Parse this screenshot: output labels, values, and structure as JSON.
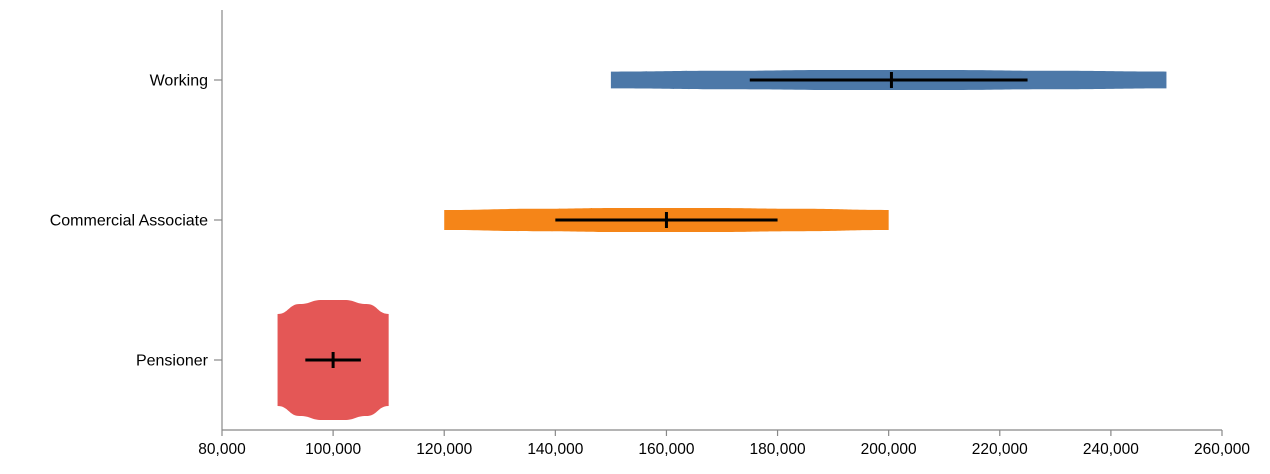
{
  "chart_data": {
    "type": "violin",
    "title": "",
    "xlabel": "",
    "ylabel": "",
    "xlim": [
      80000,
      260000
    ],
    "x_ticks": [
      80000,
      100000,
      120000,
      140000,
      160000,
      180000,
      200000,
      220000,
      240000,
      260000
    ],
    "x_tick_labels": [
      "80,000",
      "100,000",
      "120,000",
      "140,000",
      "160,000",
      "180,000",
      "200,000",
      "220,000",
      "240,000",
      "260,000"
    ],
    "grid": false,
    "legend": "none",
    "categories": [
      "Working",
      "Commercial Associate",
      "Pensioner"
    ],
    "series": [
      {
        "category": "Working",
        "color": "#4c78a8",
        "min": 150000,
        "max": 250000,
        "q1": 175000,
        "median": 200500,
        "q3": 225000,
        "width_rel": [
          0.42,
          0.46,
          0.5,
          0.5,
          0.46,
          0.42
        ]
      },
      {
        "category": "Commercial Associate",
        "color": "#f58518",
        "min": 120000,
        "max": 200000,
        "q1": 140000,
        "median": 160000,
        "q3": 180000,
        "width_rel": [
          0.5,
          0.56,
          0.6,
          0.6,
          0.56,
          0.5
        ]
      },
      {
        "category": "Pensioner",
        "color": "#e45756",
        "min": 90000,
        "max": 110000,
        "q1": 95000,
        "median": 100000,
        "q3": 105000,
        "width_rel": [
          2.3,
          2.8,
          3.0,
          3.0,
          2.8,
          2.3
        ]
      }
    ]
  }
}
